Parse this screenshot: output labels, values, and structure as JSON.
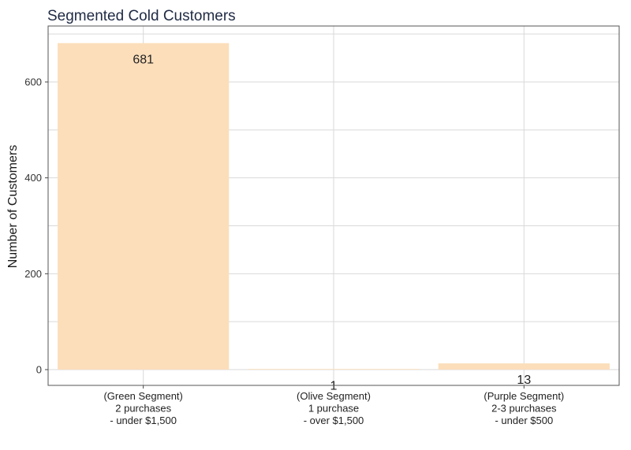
{
  "colors": {
    "bar": "#FCDEBB",
    "grid": "#D9D9D9",
    "frame": "#555555"
  },
  "chart_data": {
    "type": "bar",
    "title": "Segmented Cold Customers",
    "xlabel": "",
    "ylabel": "Number of Customers",
    "ylim": [
      0,
      700
    ],
    "yticks": [
      0,
      200,
      400,
      600
    ],
    "grid": true,
    "categories": [
      [
        "(Green Segment)",
        "2 purchases",
        "- under $1,500"
      ],
      [
        "(Olive Segment)",
        "1 purchase",
        "- over $1,500"
      ],
      [
        "(Purple Segment)",
        "2-3 purchases",
        "- under $500"
      ]
    ],
    "values": [
      681,
      1,
      13
    ],
    "data_labels": [
      "681",
      "1",
      "13"
    ]
  }
}
